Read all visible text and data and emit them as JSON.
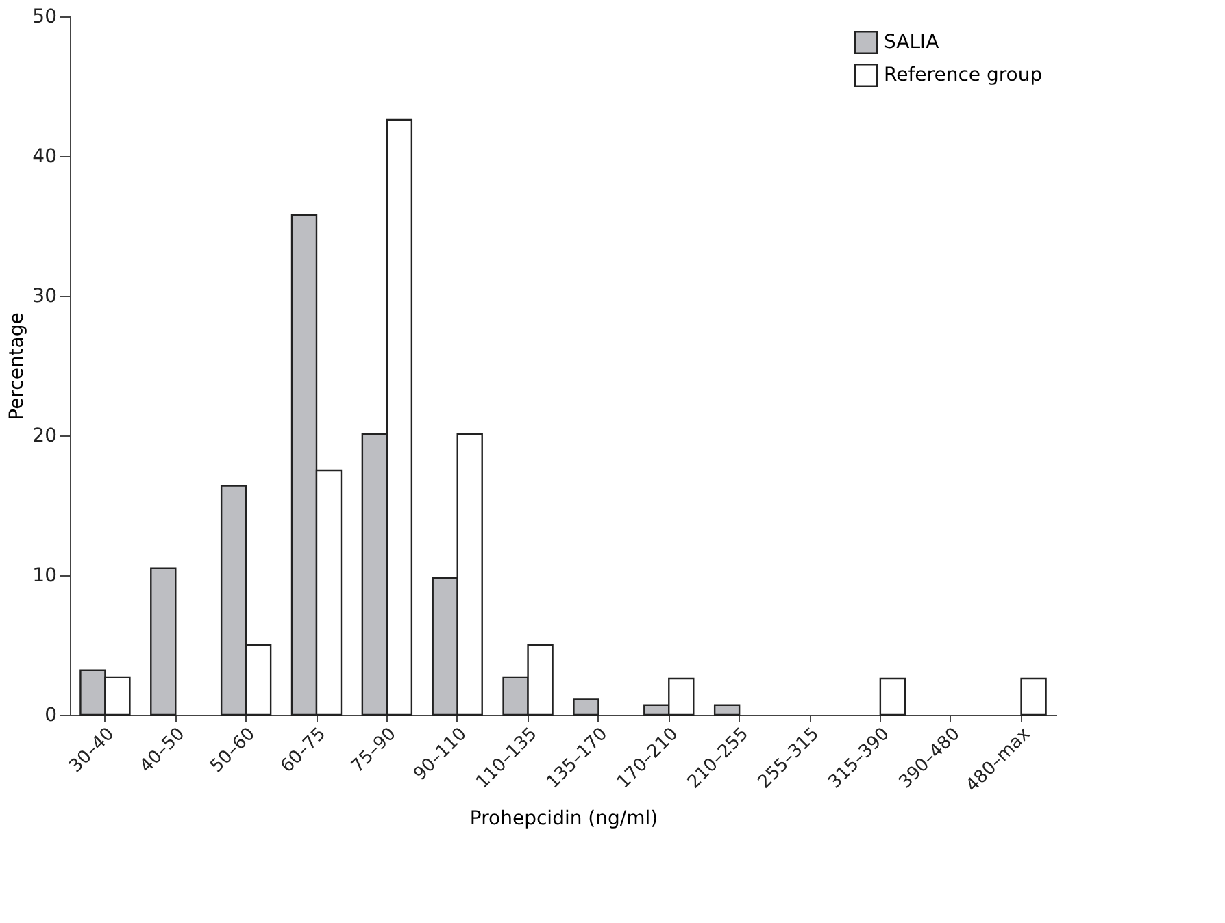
{
  "chart_data": {
    "type": "bar",
    "xlabel": "Prohepcidin (ng/ml)",
    "ylabel": "Percentage",
    "categories": [
      "30–40",
      "40–50",
      "50–60",
      "60–75",
      "75–90",
      "90–110",
      "110–135",
      "135–170",
      "170–210",
      "210–255",
      "255–315",
      "315–390",
      "390–480",
      "480–max"
    ],
    "series": [
      {
        "name": "SALIA",
        "color": "#bdbec2",
        "values": [
          3.2,
          10.5,
          16.4,
          35.8,
          20.1,
          9.8,
          2.7,
          1.1,
          0.7,
          0.7,
          0,
          0,
          0,
          0
        ]
      },
      {
        "name": "Reference group",
        "color": "#ffffff",
        "values": [
          2.7,
          0,
          5.0,
          17.5,
          42.6,
          20.1,
          5.0,
          0,
          2.6,
          0,
          0,
          2.6,
          0,
          2.6
        ]
      }
    ],
    "ylim": [
      0,
      50
    ],
    "yticks": [
      0,
      10,
      20,
      30,
      40,
      50
    ],
    "grid": false,
    "legend": "top right"
  }
}
